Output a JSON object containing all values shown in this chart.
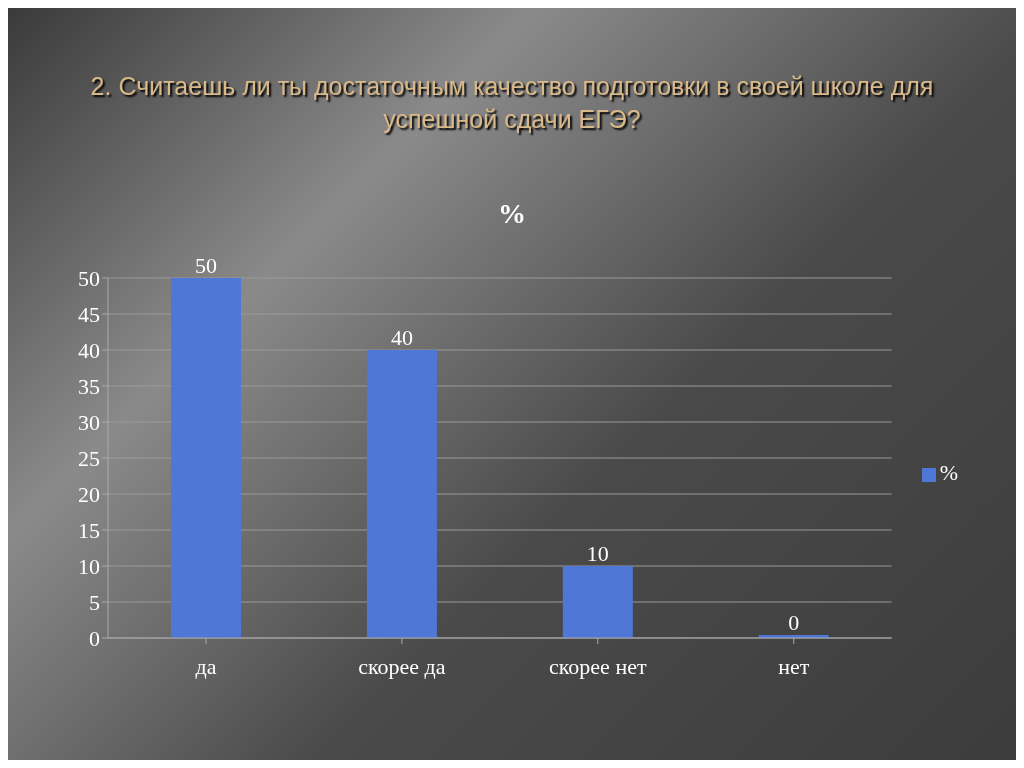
{
  "chart_data": {
    "type": "bar",
    "title": "2. Считаешь ли ты достаточным качество подготовки в своей школе для успешной сдачи ЕГЭ?",
    "subtitle": "%",
    "categories": [
      "да",
      "скорее да",
      "скорее нет",
      "нет"
    ],
    "series": [
      {
        "name": "%",
        "color": "#4f77d6",
        "values": [
          50,
          40,
          10,
          0
        ]
      }
    ],
    "ylim": [
      0,
      50
    ],
    "yticks": [
      0,
      5,
      10,
      15,
      20,
      25,
      30,
      35,
      40,
      45,
      50
    ],
    "grid": "y",
    "legend": "right",
    "data_labels": true
  }
}
